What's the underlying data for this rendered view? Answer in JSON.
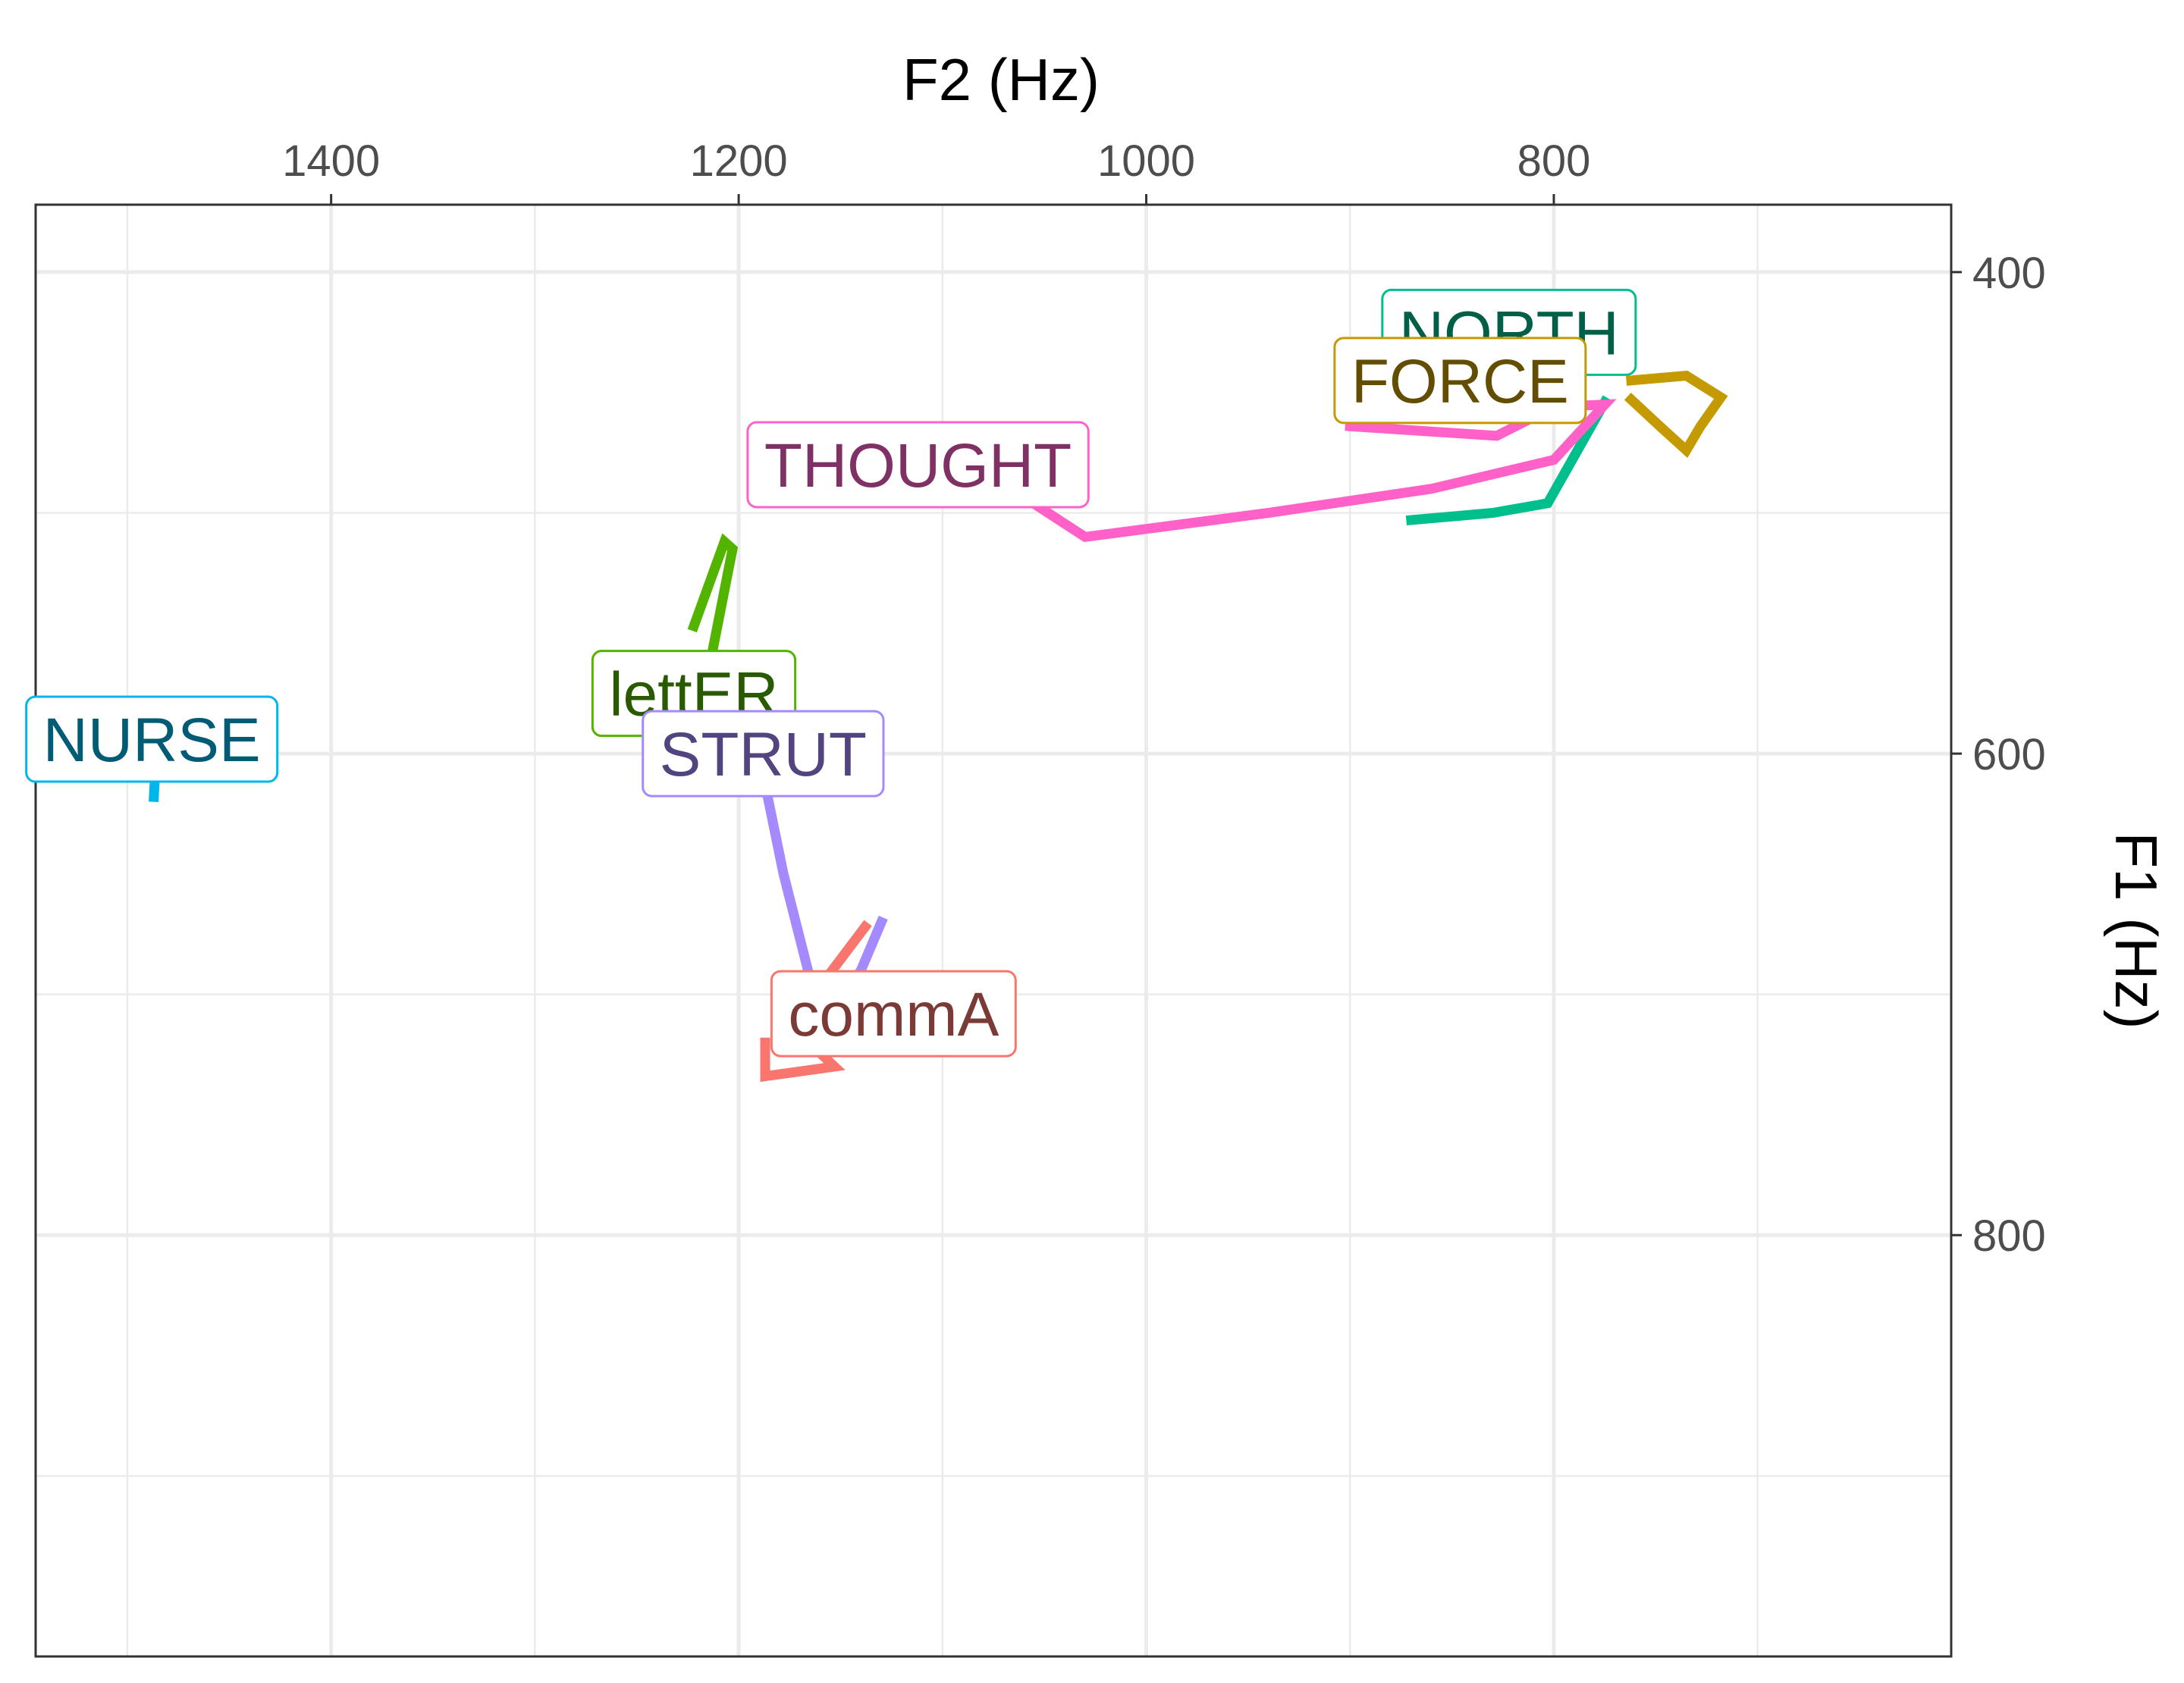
{
  "chart_data": {
    "type": "line",
    "xlabel": "F2 (Hz)",
    "ylabel": "F1 (Hz)",
    "x_axis_position": "top",
    "y_axis_position": "right",
    "x_reversed": true,
    "y_reversed": true,
    "xlim": [
      1545,
      605
    ],
    "ylim": [
      372,
      975
    ],
    "x_ticks": [
      1400,
      1200,
      1000,
      800
    ],
    "y_ticks": [
      400,
      600,
      800
    ],
    "x_tick_labels": [
      "1400",
      "1200",
      "1000",
      "800"
    ],
    "y_tick_labels": [
      "400",
      "600",
      "800"
    ],
    "grid": true,
    "legend": "none",
    "series": [
      {
        "name": "NORTH",
        "color": "#00BF8C",
        "text_color": "#005F46",
        "points": [
          [
            870,
            503
          ],
          [
            830,
            500
          ],
          [
            803,
            496
          ],
          [
            775,
            454
          ]
        ],
        "label_at": [
          822,
          425
        ]
      },
      {
        "name": "FORCE",
        "color": "#C49A00",
        "text_color": "#624D00",
        "points": [
          [
            762,
            445
          ],
          [
            735,
            443
          ],
          [
            718,
            452
          ],
          [
            728,
            464
          ],
          [
            735,
            474
          ],
          [
            748,
            464
          ],
          [
            762,
            453
          ]
        ],
        "label_at": [
          846,
          445
        ]
      },
      {
        "name": "THOUGHT",
        "color": "#FF61C9",
        "text_color": "#7F3064",
        "points": [
          [
            1070,
            488
          ],
          [
            1030,
            510
          ],
          [
            940,
            500
          ],
          [
            860,
            490
          ],
          [
            800,
            478
          ],
          [
            775,
            455
          ],
          [
            800,
            456
          ],
          [
            828,
            468
          ],
          [
            900,
            464
          ]
        ],
        "label_at": [
          1112,
          480
        ]
      },
      {
        "name": "lettER",
        "color": "#53B400",
        "text_color": "#295A00",
        "points": [
          [
            1222,
            547
          ],
          [
            1207,
            512
          ],
          [
            1203,
            515
          ],
          [
            1213,
            558
          ],
          [
            1222,
            575
          ]
        ],
        "label_at": [
          1222,
          575
        ]
      },
      {
        "name": "NURSE",
        "color": "#00B6EB",
        "text_color": "#005B75",
        "points": [
          [
            1487,
            594
          ],
          [
            1486,
            602
          ],
          [
            1487,
            618
          ]
        ],
        "label_at": [
          1488,
          594
        ]
      },
      {
        "name": "STRUT",
        "color": "#A58AFF",
        "text_color": "#52457F",
        "points": [
          [
            1188,
            598
          ],
          [
            1186,
            617
          ],
          [
            1178,
            650
          ],
          [
            1163,
            700
          ],
          [
            1150,
            702
          ],
          [
            1140,
            690
          ],
          [
            1130,
            670
          ]
        ],
        "label_at": [
          1188,
          600
        ]
      },
      {
        "name": "commA",
        "color": "#F8766D",
        "text_color": "#7B3A36",
        "points": [
          [
            1138,
            672
          ],
          [
            1163,
            700
          ],
          [
            1170,
            700
          ],
          [
            1168,
            718
          ],
          [
            1153,
            730
          ],
          [
            1187,
            734
          ],
          [
            1187,
            720
          ]
        ],
        "label_at": [
          1124,
          708
        ]
      }
    ]
  }
}
